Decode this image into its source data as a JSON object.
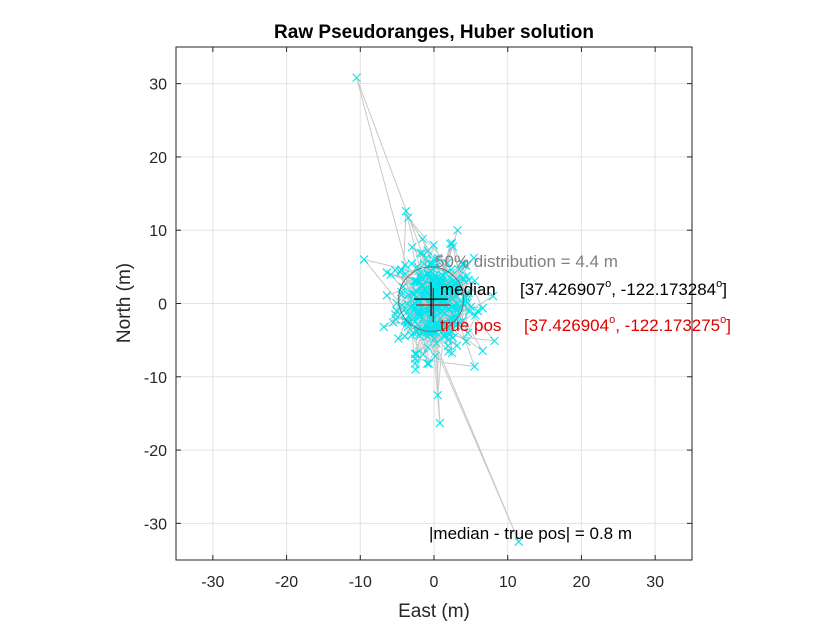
{
  "chart_data": {
    "type": "scatter",
    "title": "Raw Pseudoranges, Huber solution",
    "xlabel": "East (m)",
    "ylabel": "North (m)",
    "xlim": [
      -35,
      35
    ],
    "ylim": [
      -35,
      35
    ],
    "xticks": [
      -30,
      -20,
      -10,
      0,
      10,
      20,
      30
    ],
    "yticks": [
      -30,
      -20,
      -10,
      0,
      10,
      20,
      30
    ],
    "grid": true,
    "colors": {
      "points": "#00e5ee",
      "track": "#c8c8c8",
      "grid": "#e2e2e2",
      "axes": "#262626",
      "median": "#000000",
      "true_pos": "#e00000",
      "circle": "#707070",
      "distribution_text": "#808080"
    },
    "outlier_points": [
      {
        "x": -10.5,
        "y": 30.8
      },
      {
        "x": -3.8,
        "y": 12.6
      },
      {
        "x": -3.5,
        "y": 11.7
      },
      {
        "x": 3.2,
        "y": 10.0
      },
      {
        "x": -9.5,
        "y": 6.0
      },
      {
        "x": 8.0,
        "y": 1.0
      },
      {
        "x": 8.2,
        "y": -5.1
      },
      {
        "x": -6.8,
        "y": -3.2
      },
      {
        "x": 5.5,
        "y": -8.6
      },
      {
        "x": -2.5,
        "y": -9.0
      },
      {
        "x": 0.5,
        "y": -12.5
      },
      {
        "x": 0.8,
        "y": -16.3
      },
      {
        "x": 11.5,
        "y": -32.5
      }
    ],
    "cloud": {
      "n": 300,
      "sigma_x": 2.6,
      "sigma_y": 3.4,
      "clip_x": 6.5,
      "clip_y": 8.5
    },
    "median": {
      "x": -0.4,
      "y": 0.6,
      "label": "median",
      "lat": "37.426907",
      "lon": "-122.173284"
    },
    "true_pos": {
      "x": -0.1,
      "y": -0.2,
      "label": "true pos",
      "lat": "37.426904",
      "lon": "-122.173275"
    },
    "distribution_radius": 4.4,
    "annotations": {
      "distribution": "50% distribution = 4.4 m",
      "error": "|median - true pos| = 0.8 m",
      "degree_symbol": "o",
      "median_prefix": "[37.426907",
      "median_middle": ", -122.173284",
      "true_prefix": "[37.426904",
      "true_middle": ", -122.173275",
      "close_bracket": "]"
    }
  }
}
